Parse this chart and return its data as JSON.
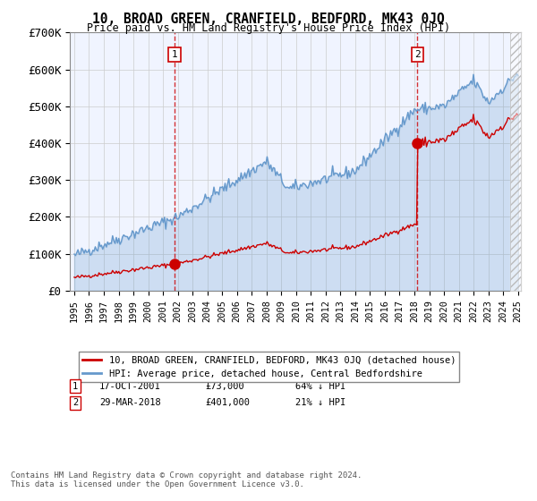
{
  "title": "10, BROAD GREEN, CRANFIELD, BEDFORD, MK43 0JQ",
  "subtitle": "Price paid vs. HM Land Registry's House Price Index (HPI)",
  "legend_label_red": "10, BROAD GREEN, CRANFIELD, BEDFORD, MK43 0JQ (detached house)",
  "legend_label_blue": "HPI: Average price, detached house, Central Bedfordshire",
  "footnote": "Contains HM Land Registry data © Crown copyright and database right 2024.\nThis data is licensed under the Open Government Licence v3.0.",
  "transactions": [
    {
      "label": "1",
      "date": "2001-10-17",
      "price": 73000,
      "note": "64% ↓ HPI"
    },
    {
      "label": "2",
      "date": "2018-03-29",
      "price": 401000,
      "note": "21% ↓ HPI"
    }
  ],
  "transaction_display": [
    {
      "label": "1",
      "date_str": "17-OCT-2001",
      "price_str": "£73,000",
      "note": "64% ↓ HPI"
    },
    {
      "label": "2",
      "date_str": "29-MAR-2018",
      "price_str": "£401,000",
      "note": "21% ↓ HPI"
    }
  ],
  "background_color": "#f0f4ff",
  "hatch_color": "#cccccc",
  "grid_color": "#cccccc",
  "red_line_color": "#cc0000",
  "blue_line_color": "#6699cc",
  "ylim": [
    0,
    700000
  ],
  "yticks": [
    0,
    100000,
    200000,
    300000,
    400000,
    500000,
    600000,
    700000
  ],
  "ytick_labels": [
    "£0",
    "£100K",
    "£200K",
    "£300K",
    "£400K",
    "£500K",
    "£600K",
    "£700K"
  ],
  "xmin_year": 1995,
  "xmax_year": 2025,
  "xticks": [
    1995,
    1996,
    1997,
    1998,
    1999,
    2000,
    2001,
    2002,
    2003,
    2004,
    2005,
    2006,
    2007,
    2008,
    2009,
    2010,
    2011,
    2012,
    2013,
    2014,
    2015,
    2016,
    2017,
    2018,
    2019,
    2020,
    2021,
    2022,
    2023,
    2024,
    2025
  ]
}
